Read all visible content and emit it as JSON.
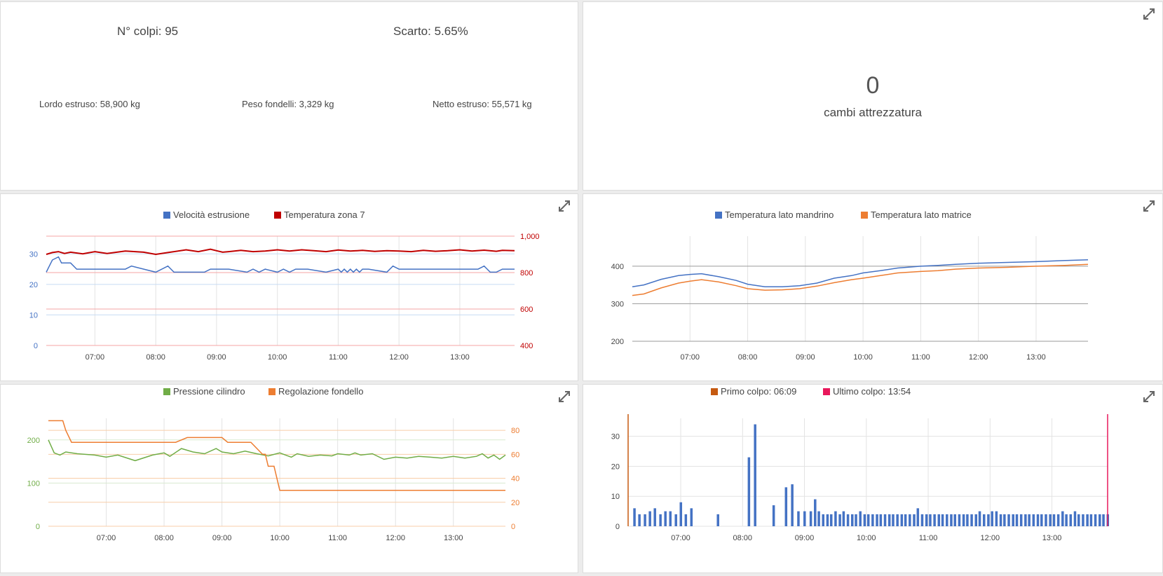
{
  "summary": {
    "colpi": "N° colpi: 95",
    "scarto": "Scarto: 5.65%",
    "lordo": "Lordo estruso: 58,900 kg",
    "peso": "Peso fondelli: 3,329 kg",
    "netto": "Netto estruso: 55,571 kg"
  },
  "counter": {
    "value": "0",
    "label": "cambi attrezzatura"
  },
  "icons": {
    "expand": "expand-icon"
  },
  "chart_data": [
    {
      "id": "chart1",
      "type": "line",
      "legend": [
        "Velocità estrusione",
        "Temperatura zona 7"
      ],
      "colors": [
        "#4472c4",
        "#c00000"
      ],
      "x_ticks": [
        "07:00",
        "08:00",
        "09:00",
        "10:00",
        "11:00",
        "12:00",
        "13:00"
      ],
      "x_range": [
        6.2,
        13.9
      ],
      "left_axis": {
        "ticks": [
          0,
          10,
          20,
          30
        ],
        "range": [
          0,
          35.8
        ],
        "color": "#4472c4"
      },
      "right_axis": {
        "ticks": [
          400,
          600,
          800,
          1000
        ],
        "labels": [
          "400",
          "600",
          "800",
          "1,000"
        ],
        "range": [
          400,
          1000
        ],
        "color": "#c00000"
      },
      "series": [
        {
          "name": "Velocità estrusione",
          "axis": "left",
          "x": [
            6.2,
            6.3,
            6.4,
            6.45,
            6.5,
            6.6,
            6.7,
            7.0,
            7.2,
            7.5,
            7.6,
            8.0,
            8.2,
            8.3,
            8.45,
            8.6,
            8.8,
            8.9,
            9.0,
            9.2,
            9.5,
            9.6,
            9.7,
            9.8,
            10.0,
            10.1,
            10.2,
            10.3,
            10.5,
            10.8,
            11.0,
            11.05,
            11.1,
            11.15,
            11.2,
            11.25,
            11.3,
            11.35,
            11.4,
            11.5,
            11.8,
            11.9,
            12.0,
            12.2,
            12.5,
            12.8,
            13.0,
            13.3,
            13.4,
            13.5,
            13.6,
            13.7,
            13.9
          ],
          "y": [
            24,
            28,
            29,
            27,
            27,
            27,
            25,
            25,
            25,
            25,
            26,
            24,
            26,
            24,
            24,
            24,
            24,
            25,
            25,
            25,
            24,
            25,
            24,
            25,
            24,
            25,
            24,
            25,
            25,
            24,
            25,
            24,
            25,
            24,
            25,
            24,
            25,
            24,
            25,
            25,
            24,
            26,
            25,
            25,
            25,
            25,
            25,
            25,
            26,
            24,
            24,
            25,
            25
          ]
        },
        {
          "name": "Temperatura zona 7",
          "axis": "right",
          "x": [
            6.2,
            6.3,
            6.4,
            6.5,
            6.6,
            6.8,
            7.0,
            7.2,
            7.5,
            7.8,
            8.0,
            8.2,
            8.5,
            8.7,
            8.9,
            9.0,
            9.1,
            9.2,
            9.4,
            9.6,
            9.8,
            10.0,
            10.2,
            10.4,
            10.6,
            10.8,
            11.0,
            11.2,
            11.4,
            11.6,
            11.8,
            12.0,
            12.2,
            12.4,
            12.6,
            12.8,
            13.0,
            13.2,
            13.4,
            13.6,
            13.7,
            13.9
          ],
          "y": [
            900,
            910,
            915,
            905,
            912,
            903,
            915,
            905,
            918,
            912,
            900,
            910,
            925,
            915,
            928,
            920,
            912,
            915,
            922,
            915,
            918,
            925,
            918,
            925,
            920,
            915,
            924,
            918,
            922,
            916,
            920,
            918,
            915,
            922,
            917,
            920,
            925,
            918,
            923,
            917,
            922,
            920
          ]
        }
      ]
    },
    {
      "id": "chart2",
      "type": "line",
      "legend": [
        "Temperatura lato mandrino",
        "Temperatura lato matrice"
      ],
      "colors": [
        "#4472c4",
        "#ed7d31"
      ],
      "x_ticks": [
        "07:00",
        "08:00",
        "09:00",
        "10:00",
        "11:00",
        "12:00",
        "13:00"
      ],
      "x_range": [
        6.0,
        13.9
      ],
      "left_axis": {
        "ticks": [
          200,
          300,
          400
        ],
        "range": [
          200,
          480
        ]
      },
      "series": [
        {
          "name": "Temperatura lato mandrino",
          "x": [
            6.0,
            6.2,
            6.5,
            6.8,
            7.0,
            7.2,
            7.5,
            7.8,
            8.0,
            8.3,
            8.6,
            8.9,
            9.2,
            9.5,
            9.8,
            10.0,
            10.3,
            10.6,
            11.0,
            11.3,
            11.6,
            12.0,
            12.5,
            13.0,
            13.5,
            13.9
          ],
          "y": [
            345,
            350,
            365,
            375,
            378,
            380,
            372,
            362,
            352,
            345,
            345,
            348,
            355,
            368,
            375,
            382,
            388,
            395,
            400,
            402,
            405,
            408,
            410,
            412,
            415,
            417
          ]
        },
        {
          "name": "Temperatura lato matrice",
          "x": [
            6.0,
            6.2,
            6.5,
            6.8,
            7.0,
            7.2,
            7.5,
            7.8,
            8.0,
            8.3,
            8.6,
            8.9,
            9.2,
            9.5,
            9.8,
            10.0,
            10.3,
            10.6,
            11.0,
            11.3,
            11.6,
            12.0,
            12.5,
            13.0,
            13.5,
            13.9
          ],
          "y": [
            322,
            326,
            342,
            355,
            360,
            364,
            358,
            348,
            340,
            336,
            337,
            340,
            347,
            356,
            364,
            368,
            375,
            382,
            386,
            388,
            392,
            395,
            397,
            400,
            402,
            405
          ]
        }
      ]
    },
    {
      "id": "chart3",
      "type": "line",
      "legend": [
        "Pressione cilindro",
        "Regolazione fondello"
      ],
      "colors": [
        "#70ad47",
        "#ed7d31"
      ],
      "x_ticks": [
        "07:00",
        "08:00",
        "09:00",
        "10:00",
        "11:00",
        "12:00",
        "13:00"
      ],
      "x_range": [
        6.0,
        13.9
      ],
      "left_axis": {
        "ticks": [
          0,
          100,
          200
        ],
        "range": [
          0,
          250
        ],
        "color": "#70ad47"
      },
      "right_axis": {
        "ticks": [
          0,
          20,
          40,
          60,
          80
        ],
        "range": [
          0,
          90
        ],
        "color": "#ed7d31"
      },
      "series": [
        {
          "name": "Pressione cilindro",
          "axis": "left",
          "x": [
            6.0,
            6.1,
            6.2,
            6.3,
            6.5,
            6.8,
            7.0,
            7.2,
            7.5,
            7.8,
            8.0,
            8.1,
            8.3,
            8.5,
            8.7,
            8.9,
            9.0,
            9.2,
            9.4,
            9.6,
            9.8,
            10.0,
            10.1,
            10.2,
            10.3,
            10.5,
            10.7,
            10.9,
            11.0,
            11.2,
            11.3,
            11.4,
            11.6,
            11.8,
            12.0,
            12.2,
            12.4,
            12.6,
            12.8,
            13.0,
            13.2,
            13.4,
            13.5,
            13.6,
            13.7,
            13.8,
            13.9
          ],
          "y": [
            200,
            170,
            165,
            172,
            168,
            165,
            160,
            165,
            152,
            165,
            170,
            162,
            180,
            172,
            168,
            180,
            172,
            168,
            174,
            168,
            163,
            170,
            165,
            160,
            168,
            162,
            165,
            163,
            168,
            165,
            170,
            165,
            168,
            155,
            160,
            158,
            162,
            160,
            158,
            162,
            158,
            162,
            168,
            158,
            165,
            155,
            165
          ]
        },
        {
          "name": "Regolazione fondello",
          "axis": "right",
          "x": [
            6.0,
            6.25,
            6.3,
            6.4,
            6.9,
            7.5,
            8.0,
            8.2,
            8.4,
            8.6,
            9.0,
            9.1,
            9.5,
            9.7,
            9.75,
            9.8,
            9.9,
            10.0,
            12.0,
            13.0,
            13.9
          ],
          "y": [
            88,
            88,
            80,
            70,
            70,
            70,
            70,
            70,
            74,
            74,
            74,
            70,
            70,
            60,
            60,
            50,
            50,
            30,
            30,
            30,
            30
          ]
        }
      ]
    },
    {
      "id": "chart4",
      "type": "bar",
      "legend": [
        "Primo colpo: 06:09",
        "Ultimo colpo: 13:54"
      ],
      "colors": [
        "#c55a11",
        "#e8185b"
      ],
      "bar_color": "#4472c4",
      "x_ticks": [
        "07:00",
        "08:00",
        "09:00",
        "10:00",
        "11:00",
        "12:00",
        "13:00"
      ],
      "x_range": [
        6.15,
        13.9
      ],
      "left_axis": {
        "ticks": [
          0,
          10,
          20,
          30
        ],
        "range": [
          0,
          36
        ]
      },
      "markers": [
        6.15,
        13.9
      ],
      "bars": {
        "x": [
          6.25,
          6.33,
          6.42,
          6.5,
          6.58,
          6.67,
          6.75,
          6.83,
          6.92,
          7.0,
          7.08,
          7.17,
          7.6,
          8.1,
          8.2,
          8.5,
          8.7,
          8.8,
          8.9,
          9.0,
          9.1,
          9.17,
          9.23,
          9.3,
          9.37,
          9.43,
          9.5,
          9.57,
          9.63,
          9.7,
          9.77,
          9.83,
          9.9,
          9.97,
          10.03,
          10.1,
          10.17,
          10.23,
          10.3,
          10.37,
          10.43,
          10.5,
          10.57,
          10.63,
          10.7,
          10.77,
          10.83,
          10.9,
          10.97,
          11.03,
          11.1,
          11.17,
          11.23,
          11.3,
          11.37,
          11.43,
          11.5,
          11.57,
          11.63,
          11.7,
          11.77,
          11.83,
          11.9,
          11.97,
          12.03,
          12.1,
          12.17,
          12.23,
          12.3,
          12.37,
          12.43,
          12.5,
          12.57,
          12.63,
          12.7,
          12.77,
          12.83,
          12.9,
          12.97,
          13.03,
          13.1,
          13.17,
          13.23,
          13.3,
          13.37,
          13.43,
          13.5,
          13.57,
          13.63,
          13.7,
          13.77,
          13.83,
          13.9
        ],
        "y": [
          6,
          4,
          4,
          5,
          6,
          4,
          5,
          5,
          4,
          8,
          4,
          6,
          4,
          23,
          34,
          7,
          13,
          14,
          5,
          5,
          5,
          9,
          5,
          4,
          4,
          4,
          5,
          4,
          5,
          4,
          4,
          4,
          5,
          4,
          4,
          4,
          4,
          4,
          4,
          4,
          4,
          4,
          4,
          4,
          4,
          4,
          6,
          4,
          4,
          4,
          4,
          4,
          4,
          4,
          4,
          4,
          4,
          4,
          4,
          4,
          4,
          5,
          4,
          4,
          5,
          5,
          4,
          4,
          4,
          4,
          4,
          4,
          4,
          4,
          4,
          4,
          4,
          4,
          4,
          4,
          4,
          5,
          4,
          4,
          5,
          4,
          4,
          4,
          4,
          4,
          4,
          4,
          4
        ]
      }
    }
  ]
}
